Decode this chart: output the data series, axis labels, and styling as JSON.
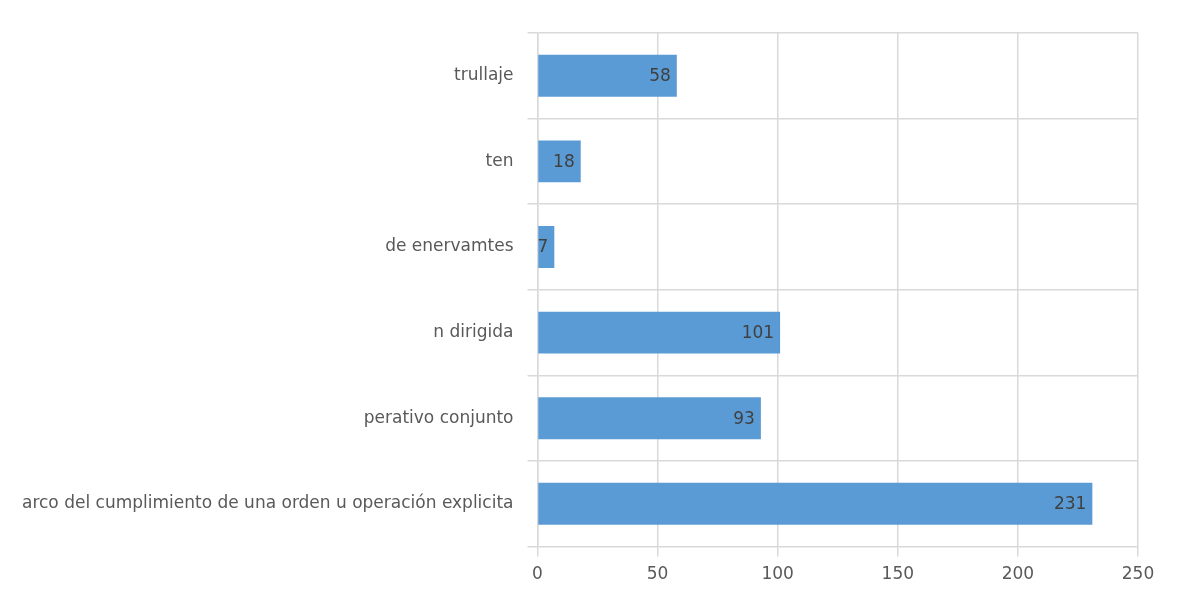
{
  "chart_data": {
    "type": "bar",
    "orientation": "horizontal",
    "categories": [
      "trullaje",
      "ten",
      "de enervamtes",
      "n dirigida",
      "perativo conjunto",
      "arco del cumplimiento de una orden u operación explicita"
    ],
    "values": [
      58,
      18,
      7,
      101,
      93,
      231
    ],
    "color": "#5b9bd5",
    "xlim": [
      0,
      250
    ],
    "xticks": [
      0,
      50,
      100,
      150,
      200,
      250
    ],
    "grid": true,
    "data_labels": true,
    "legend": false
  }
}
